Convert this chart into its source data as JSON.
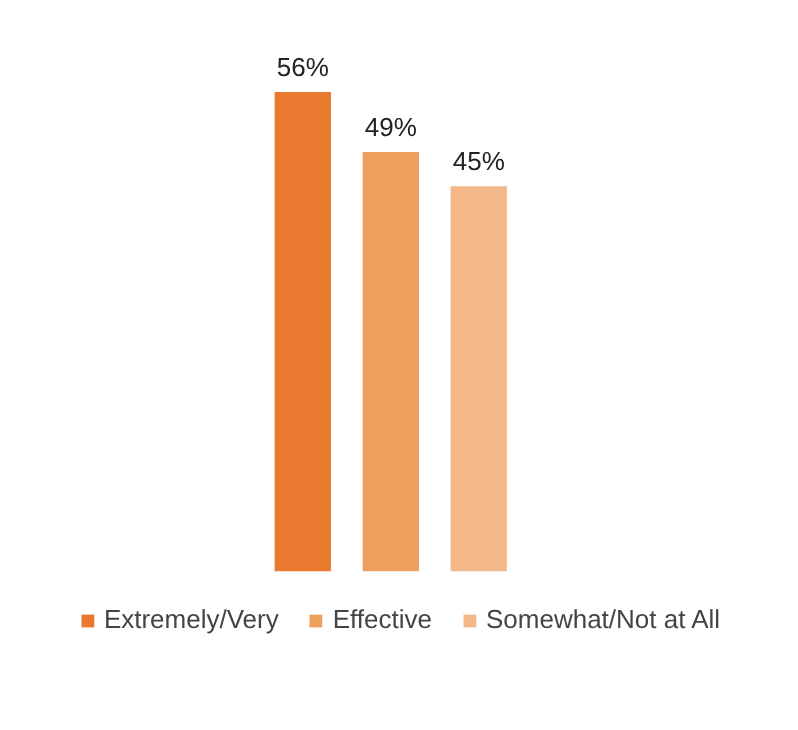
{
  "chart_data": {
    "type": "bar",
    "stacked": true,
    "categories": [
      null,
      null,
      null
    ],
    "legend": "bottom",
    "tick_labels": false,
    "series": [
      {
        "name": "Extremely/Very",
        "color": "#e8792f",
        "values": [
          56,
          null,
          null
        ],
        "value_labels": [
          "56%",
          null,
          null
        ]
      },
      {
        "name": "Effective",
        "color": "#ee9f5e",
        "values": [
          null,
          49,
          null
        ],
        "value_labels": [
          null,
          "49%",
          null
        ]
      },
      {
        "name": "Somewhat/Not at All",
        "color": "#f2b88a",
        "values": [
          null,
          null,
          45
        ],
        "value_labels": [
          null,
          null,
          "45%"
        ]
      }
    ]
  }
}
